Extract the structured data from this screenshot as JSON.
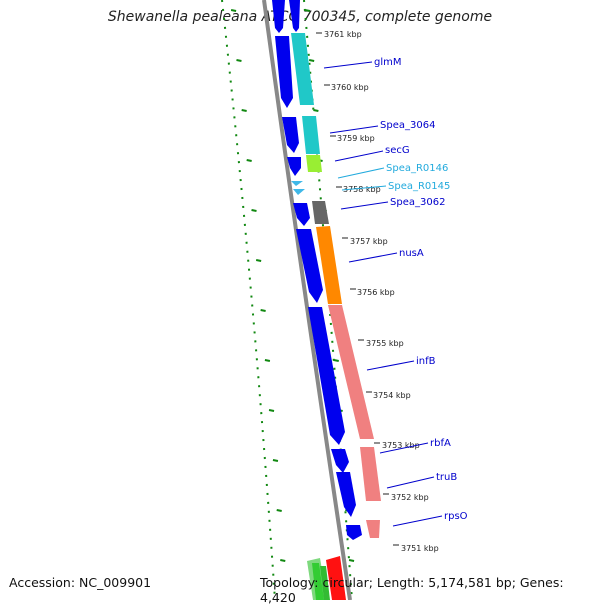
{
  "title": "Shewanella pealeana ATCC 700345, complete genome",
  "footer": {
    "accession": "Accession: NC_009901",
    "stats": "Topology: circular; Length: 5,174,581 bp; Genes: 4,420"
  },
  "colors": {
    "cds": "#0000ee",
    "trna": "#3fb8e8",
    "label": "#0000cc",
    "rna_label": "#22aadd",
    "backbone": "#888888",
    "gc_ticks": "#118811",
    "cog_cyan": "#20c8c8",
    "cog_lime": "#99ee33",
    "cog_grey": "#666666",
    "cog_orange": "#ff8800",
    "cog_salmon": "#f08080"
  },
  "ticks": [
    "3761 kbp",
    "3760 kbp",
    "3759 kbp",
    "3758 kbp",
    "3757 kbp",
    "3756 kbp",
    "3755 kbp",
    "3754 kbp",
    "3753 kbp",
    "3752 kbp",
    "3751 kbp"
  ],
  "genes": [
    "glmM",
    "Spea_3064",
    "secG",
    "Spea_R0146",
    "Spea_R0145",
    "Spea_3062",
    "nusA",
    "infB",
    "rbfA",
    "truB",
    "rpsO"
  ]
}
